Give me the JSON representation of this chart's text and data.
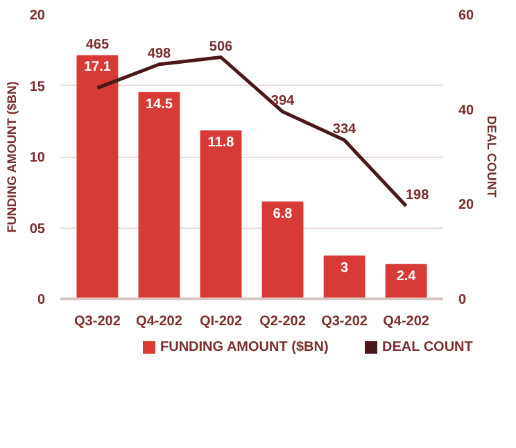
{
  "chart_data": {
    "type": "bar",
    "categories": [
      "Q3-202",
      "Q4-202",
      "QI-202",
      "Q2-202",
      "Q3-202",
      "Q4-202"
    ],
    "series": [
      {
        "name": "FUNDING AMOUNT ($BN)",
        "color": "#d83a35",
        "values": [
          17.1,
          14.5,
          11.8,
          6.8,
          3,
          2.4
        ],
        "value_labels": [
          "17.1",
          "14.5",
          "11.8",
          "6.8",
          "3",
          "2.4"
        ]
      },
      {
        "name": "DEAL COUNT",
        "type": "line",
        "axis": "y2",
        "color": "#4a1818",
        "values": [
          44.5,
          49.5,
          51,
          39.5,
          33.5,
          19.6
        ]
      }
    ],
    "annotations": [
      "465",
      "498",
      "506",
      "394",
      "334",
      "198"
    ],
    "ylabel": "FUNDING AMOUNT ($BN)",
    "y2label": "DEAL COUNT",
    "ylim": [
      0,
      20
    ],
    "yticks": [
      0,
      {
        "value": 5,
        "label": "05"
      },
      10,
      15,
      20
    ],
    "y2lim": [
      0,
      60
    ],
    "y2ticks": [
      0,
      20,
      40,
      60
    ],
    "grid": "y",
    "legend": "bottom",
    "marker": "none",
    "line_style": "solid"
  }
}
